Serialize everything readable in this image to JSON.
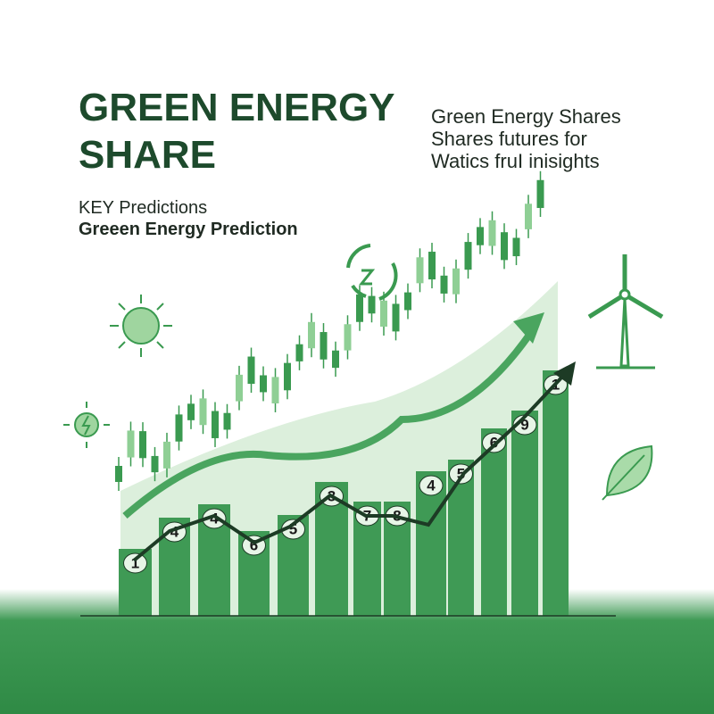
{
  "header": {
    "title_lines": [
      "GREEN ENERGY",
      "SHARE"
    ]
  },
  "blurb": {
    "lines": [
      "Green Energy Shares",
      "Shares futures for",
      "Watics fruI inisights"
    ]
  },
  "key": {
    "label": "KEY Predictions",
    "subtitle": "Greeen Energy Prediction"
  },
  "bars": [
    {
      "badge": "1"
    },
    {
      "badge": "4"
    },
    {
      "badge": "4"
    },
    {
      "badge": "6"
    },
    {
      "badge": "5"
    },
    {
      "badge": "3"
    },
    {
      "badge": "7"
    },
    {
      "badge": "8"
    },
    {
      "badge": "4"
    },
    {
      "badge": "5"
    },
    {
      "badge": "6"
    },
    {
      "badge": "9"
    },
    {
      "badge": "1"
    }
  ]
}
